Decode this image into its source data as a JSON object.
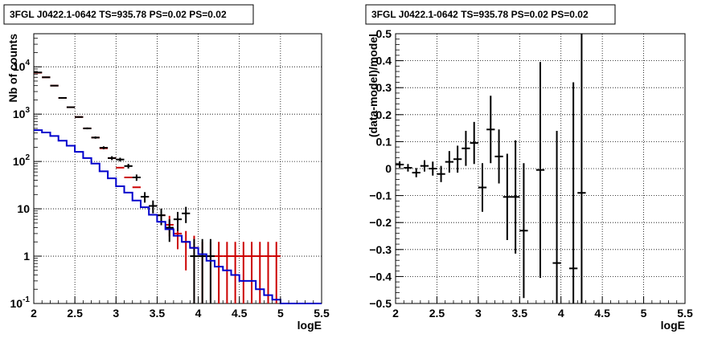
{
  "chart_data": [
    {
      "type": "line",
      "title": "3FGL J0422.1-0642 TS=935.78 PS=0.02 PS=0.02",
      "xlabel": "logE",
      "ylabel": "Nb of counts",
      "xlim": [
        2,
        5.5
      ],
      "ylim": [
        0.1,
        50000
      ],
      "yscale": "log",
      "grid": true,
      "legend": "none",
      "xticks": [
        "2",
        "2.5",
        "3",
        "3.5",
        "4",
        "4.5",
        "5",
        "5.5"
      ],
      "yticks": [
        "10^{-1}",
        "1",
        "10",
        "10^{2}",
        "10^{3}",
        "10^{4}"
      ],
      "series": [
        {
          "role": "model-total",
          "color": "#cc0000",
          "draw": "markers-errorbars",
          "x": [
            2.05,
            2.15,
            2.25,
            2.35,
            2.45,
            2.55,
            2.65,
            2.75,
            2.85,
            2.95,
            3.05,
            3.15,
            3.25,
            3.35,
            3.45,
            3.55,
            3.65,
            3.75,
            3.85,
            3.95,
            4.05,
            4.15,
            4.25,
            4.35,
            4.45,
            4.55,
            4.65,
            4.75,
            4.85,
            4.95
          ],
          "y": [
            7500,
            6000,
            4000,
            2200,
            1400,
            870,
            500,
            320,
            190,
            118,
            74,
            46,
            28.5,
            18,
            11.5,
            7.3,
            4.6,
            3.0,
            2.0,
            1.5,
            1.0,
            1.0,
            1.0,
            1.0,
            1.0,
            1.0,
            1.0,
            1.0,
            1.0,
            1.0
          ],
          "err": [
            0,
            0,
            0,
            0,
            0,
            0,
            0,
            0,
            0,
            0,
            0,
            0,
            0,
            0,
            0,
            0,
            0,
            0,
            0,
            0,
            0,
            0,
            0,
            0,
            0,
            0,
            0,
            0,
            0,
            0
          ],
          "err_up": [
            0,
            0,
            0,
            0,
            0,
            0,
            0,
            0,
            0,
            0,
            0,
            0,
            0,
            0,
            0,
            0,
            2.5,
            1.8,
            1.4,
            1.2,
            1.0,
            1.0,
            1.0,
            1.0,
            1.0,
            1.0,
            1.0,
            1.0,
            1.0,
            1.0
          ],
          "err_down": [
            0,
            0,
            0,
            0,
            0,
            0,
            0,
            0,
            0,
            0,
            0,
            0,
            0,
            0,
            0,
            0,
            2.0,
            1.6,
            1.5,
            1.4,
            0.9,
            0.9,
            0.9,
            0.9,
            0.9,
            0.9,
            0.9,
            0.9,
            0.9,
            0.9
          ]
        },
        {
          "role": "data",
          "color": "#000000",
          "draw": "markers-errorbars",
          "x": [
            2.05,
            2.15,
            2.25,
            2.35,
            2.45,
            2.55,
            2.65,
            2.75,
            2.85,
            2.95,
            3.05,
            3.15,
            3.25,
            3.35,
            3.45,
            3.55,
            3.65,
            3.75,
            3.85,
            3.95,
            4.05,
            4.15
          ],
          "y": [
            7600,
            6000,
            4000,
            2200,
            1400,
            870,
            500,
            320,
            195,
            118,
            110,
            80,
            46,
            18,
            11.5,
            7.3,
            4.0,
            6.0,
            8.0,
            1.0,
            1.0,
            1.0
          ],
          "err_up": [
            90,
            80,
            65,
            47,
            37,
            30,
            22,
            18,
            14,
            11,
            10,
            9,
            7,
            4.5,
            3.5,
            2.8,
            2.0,
            2.6,
            3.0,
            1.3,
            1.3,
            1.3
          ],
          "err_down": [
            90,
            80,
            65,
            47,
            37,
            30,
            22,
            18,
            14,
            11,
            10,
            9,
            7,
            4.5,
            3.5,
            2.8,
            2.0,
            2.6,
            3.0,
            0.9,
            0.9,
            0.9
          ]
        },
        {
          "role": "source-model",
          "color": "#0000cc",
          "draw": "histogram",
          "edges": [
            2.0,
            2.1,
            2.2,
            2.3,
            2.4,
            2.5,
            2.6,
            2.7,
            2.8,
            2.9,
            3.0,
            3.1,
            3.2,
            3.3,
            3.4,
            3.5,
            3.6,
            3.7,
            3.8,
            3.9,
            4.0,
            4.1,
            4.2,
            4.3,
            4.4,
            4.5,
            4.6,
            4.7,
            4.8,
            4.9,
            5.0,
            5.5
          ],
          "values": [
            460,
            410,
            345,
            275,
            215,
            160,
            118,
            90,
            62,
            44,
            30,
            22,
            15,
            10.8,
            7.5,
            5.3,
            3.7,
            2.7,
            2.0,
            1.5,
            1.1,
            0.8,
            0.6,
            0.5,
            0.4,
            0.3,
            0.3,
            0.2,
            0.15,
            0.12,
            0.1
          ]
        }
      ]
    },
    {
      "type": "scatter",
      "title": "3FGL J0422.1-0642 TS=935.78 PS=0.02 PS=0.02",
      "xlabel": "logE",
      "ylabel": "(data-model)/model",
      "xlim": [
        2,
        5.5
      ],
      "ylim": [
        -0.5,
        0.5
      ],
      "grid": true,
      "legend": "none",
      "xticks": [
        "2",
        "2.5",
        "3",
        "3.5",
        "4",
        "4.5",
        "5",
        "5.5"
      ],
      "yticks": [
        "−0.5",
        "−0.4",
        "−0.3",
        "−0.2",
        "−0.1",
        "0",
        "0.1",
        "0.2",
        "0.3",
        "0.4",
        "0.5"
      ],
      "series": [
        {
          "role": "residuals",
          "color": "#000000",
          "draw": "markers-errorbars",
          "x": [
            2.05,
            2.15,
            2.25,
            2.35,
            2.45,
            2.55,
            2.65,
            2.75,
            2.85,
            2.95,
            3.05,
            3.15,
            3.25,
            3.35,
            3.45,
            3.55,
            3.75,
            3.95,
            4.15,
            4.25
          ],
          "y": [
            0.015,
            0.003,
            -0.015,
            0.01,
            0.0,
            -0.02,
            0.025,
            0.035,
            0.075,
            0.095,
            -0.07,
            0.145,
            0.045,
            -0.105,
            -0.105,
            -0.23,
            -0.005,
            -0.35,
            -0.37,
            -0.09
          ],
          "err": [
            0.012,
            0.014,
            0.017,
            0.021,
            0.026,
            0.03,
            0.04,
            0.05,
            0.065,
            0.078,
            0.09,
            0.125,
            0.1,
            0.16,
            0.21,
            0.25,
            0.4,
            0.49,
            0.69,
            0.72
          ]
        }
      ]
    }
  ]
}
